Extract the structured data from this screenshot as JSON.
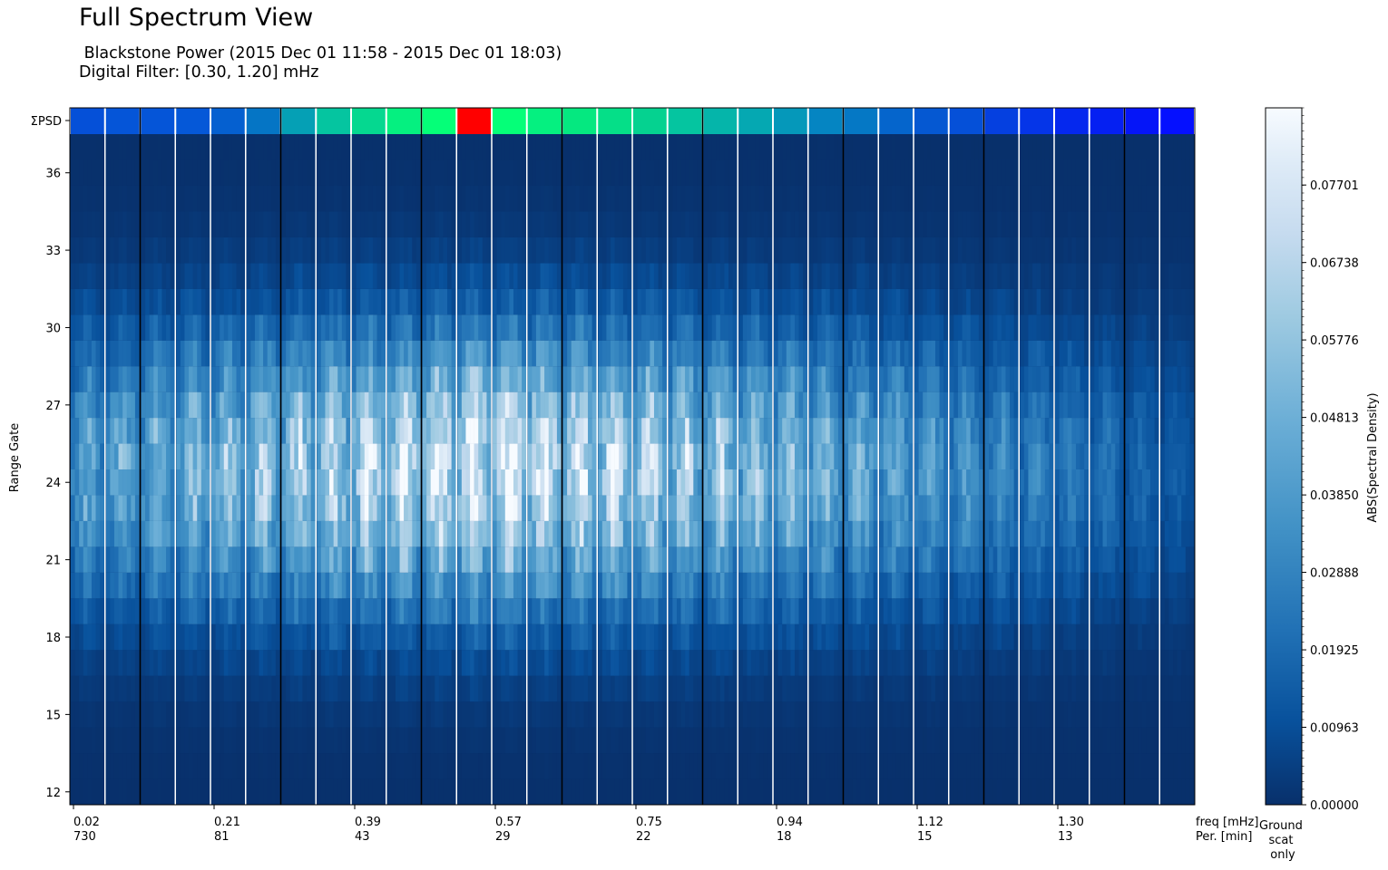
{
  "header": {
    "title": "Full Spectrum View",
    "subtitle_line1": " Blackstone Power (2015 Dec 01 11:58 - 2015 Dec 01 18:03)",
    "subtitle_line2": "Digital Filter: [0.30, 1.20] mHz"
  },
  "chart_data": {
    "type": "heatmap",
    "title": "Full Spectrum View",
    "ylabel": "Range Gate",
    "y_ticks": [
      12,
      15,
      18,
      21,
      24,
      27,
      30,
      33,
      36
    ],
    "ylim": [
      11.5,
      37.5
    ],
    "psd_row_label": "ΣPSD",
    "x_ticks": [
      {
        "freq": "0.02",
        "period": "730"
      },
      {
        "freq": "0.21",
        "period": "81"
      },
      {
        "freq": "0.39",
        "period": "43"
      },
      {
        "freq": "0.57",
        "period": "29"
      },
      {
        "freq": "0.75",
        "period": "22"
      },
      {
        "freq": "0.94",
        "period": "18"
      },
      {
        "freq": "1.12",
        "period": "15"
      },
      {
        "freq": "1.30",
        "period": "13"
      }
    ],
    "x_axis_labels": {
      "freq": "freq [mHz]",
      "period": "Per. [min]"
    },
    "num_freq_bins": 32,
    "sum_psd_colors": [
      "#0550d8",
      "#0555d8",
      "#0555d8",
      "#0558d8",
      "#0560d0",
      "#0575c5",
      "#05a0b5",
      "#05c5a0",
      "#05d890",
      "#05f080",
      "#05ff78",
      "#ff0000",
      "#05ff78",
      "#05f080",
      "#05e880",
      "#05df88",
      "#05d290",
      "#05c5a0",
      "#05b5aa",
      "#05a8b2",
      "#0598ba",
      "#0585c2",
      "#0578c5",
      "#0565cc",
      "#0558d2",
      "#0550d8",
      "#0540e0",
      "#0535e8",
      "#0528ee",
      "#0520f2",
      "#0515f8",
      "#0510ff"
    ],
    "colorbar": {
      "label": "ABS(Spectral Density)",
      "ticks": [
        "0.00000",
        "0.00963",
        "0.01925",
        "0.02888",
        "0.03850",
        "0.04813",
        "0.05776",
        "0.06738",
        "0.07701"
      ],
      "range": [
        0,
        0.0866
      ],
      "colormap": "Blues_r"
    },
    "ground_scatter_label": "Ground\nscat\nonly"
  }
}
